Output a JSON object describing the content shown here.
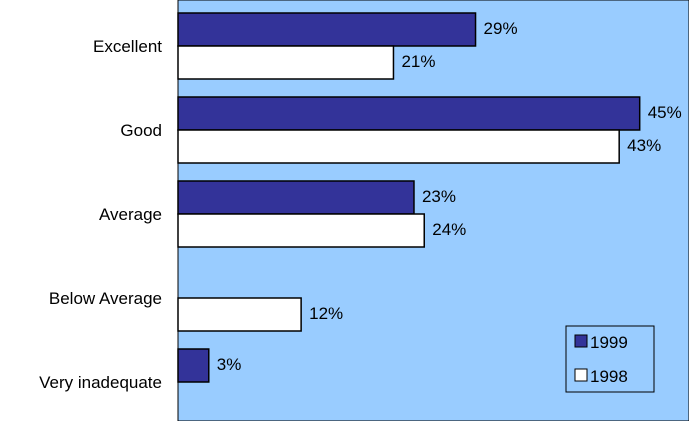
{
  "chart_data": {
    "type": "bar",
    "orientation": "horizontal",
    "categories": [
      "Excellent",
      "Good",
      "Average",
      "Below Average",
      "Very inadequate"
    ],
    "series": [
      {
        "name": "1999",
        "values": [
          29,
          45,
          23,
          null,
          3
        ],
        "labels": [
          "29%",
          "45%",
          "23%",
          "",
          "3%"
        ]
      },
      {
        "name": "1998",
        "values": [
          21,
          43,
          24,
          12,
          null
        ],
        "labels": [
          "21%",
          "43%",
          "24%",
          "12%",
          ""
        ]
      }
    ],
    "title": "",
    "xlabel": "",
    "ylabel": "",
    "xlim": [
      0,
      50
    ],
    "grid": false,
    "legend_position": "bottom-right"
  },
  "colors": {
    "plot_background": "#99CCFF",
    "series_1999": "#333399",
    "series_1998": "#FFFFFF",
    "bar_outline": "#000000"
  }
}
